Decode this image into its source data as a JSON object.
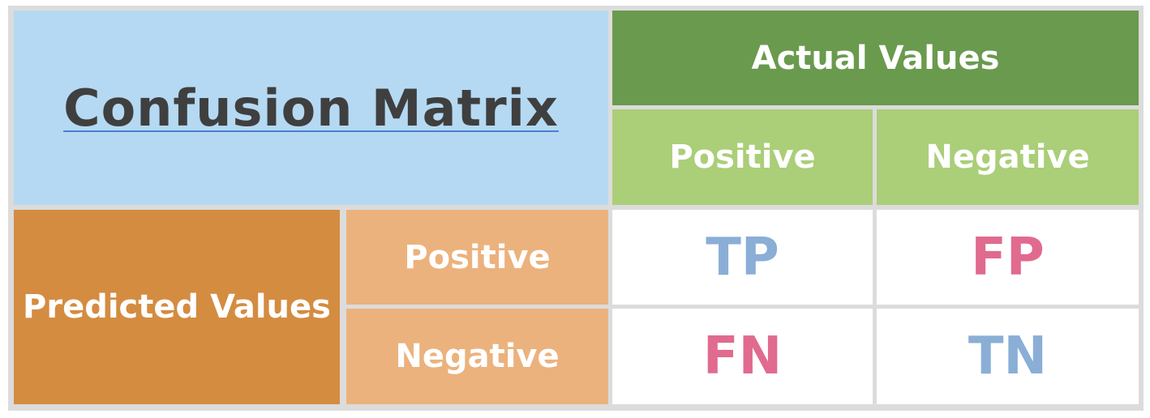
{
  "title": "Confusion Matrix",
  "actual": {
    "header": "Actual Values",
    "positive": "Positive",
    "negative": "Negative"
  },
  "predicted": {
    "header": "Predicted Values",
    "positive": "Positive",
    "negative": "Negative"
  },
  "cells": {
    "tp": "TP",
    "fp": "FP",
    "fn": "FN",
    "tn": "TN"
  },
  "colors": {
    "title_bg": "#b5d9f2",
    "actual_header_bg": "#6a9a4e",
    "actual_sub_bg": "#abce78",
    "predicted_header_bg": "#d48c41",
    "predicted_sub_bg": "#ebb27d",
    "true_color": "#8aaed6",
    "false_color": "#e06b8f",
    "grid": "#dcdcdc"
  }
}
